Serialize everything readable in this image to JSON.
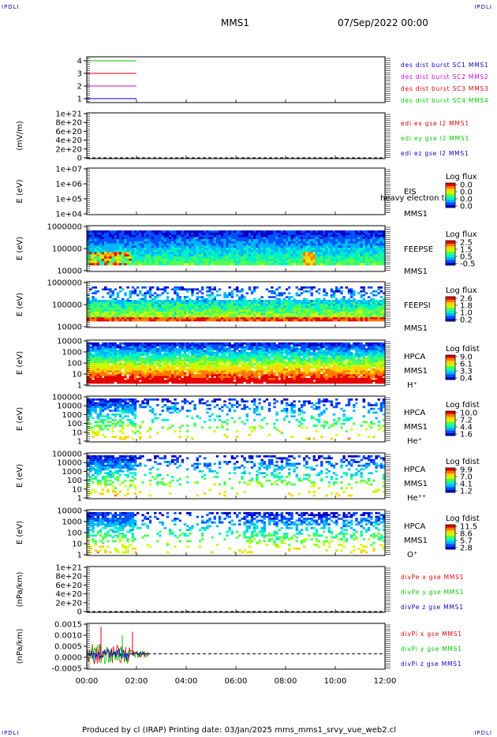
{
  "corner_label": "IPDLI",
  "header": {
    "title": "MMS1",
    "datetime": "07/Sep/2022 00:00"
  },
  "footer": "Produced by cl (IRAP)   Printing date: 03/Jan/2025   mms_mms1_srvy_vue_web2.cl",
  "colors": {
    "blue": "#0000c8",
    "magenta": "#d200d2",
    "red": "#dc0000",
    "green": "#00c800",
    "palette": [
      "#0000c8",
      "#0050ff",
      "#00b4ff",
      "#00f0c8",
      "#50ff50",
      "#c8ff00",
      "#ffd200",
      "#ff7800",
      "#e60000"
    ]
  },
  "chart_data": {
    "x_range": [
      "00:00",
      "12:00"
    ],
    "x_ticks": [
      "00:00",
      "02:00",
      "04:00",
      "06:00",
      "08:00",
      "10:00",
      "12:00"
    ],
    "panels": [
      {
        "id": "des-dist-burst",
        "type": "line",
        "ylabel": "",
        "yticks": [
          "4",
          "3",
          "2",
          "1"
        ],
        "series": [
          {
            "name": "des dist burst SC1 MMS1",
            "color": "#0000c8",
            "y": 1,
            "x": [
              "00:00",
              "02:00"
            ]
          },
          {
            "name": "des dist burst SC2 MMS2",
            "color": "#d200d2",
            "y": 2,
            "x": [
              "00:00",
              "02:00"
            ]
          },
          {
            "name": "des dist burst SC3 MMS3",
            "color": "#dc0000",
            "y": 3,
            "x": [
              "00:00",
              "02:00"
            ]
          },
          {
            "name": "des dist burst SC4 MMS4",
            "color": "#00c800",
            "y": 4,
            "x": [
              "00:00",
              "02:00"
            ]
          }
        ],
        "legend": [
          "des dist burst SC1 MMS1",
          "des dist burst SC2 MMS2",
          "des dist burst SC3 MMS3",
          "des dist burst SC4 MMS4"
        ],
        "legend_colors": [
          "#0000c8",
          "#d200d2",
          "#dc0000",
          "#00c800"
        ]
      },
      {
        "id": "edi-e",
        "type": "line",
        "ylabel": "(mV/m)",
        "yticks": [
          "1e+21",
          "8e+20",
          "6e+20",
          "4e+20",
          "2e+20",
          "0"
        ],
        "ylim": [
          0,
          1e+21
        ],
        "zero_line": true,
        "legend": [
          "edi ex gse l2 MMS1",
          "edi ey gse l2 MMS1",
          "edi ez gse l2 MMS1"
        ],
        "legend_colors": [
          "#dc0000",
          "#00c800",
          "#0000c8"
        ]
      },
      {
        "id": "eis",
        "type": "heatmap",
        "ylabel": "E (eV)",
        "yticks": [
          "1e+07",
          "1e+06",
          "1e+05",
          "1e+04"
        ],
        "ylim": [
          10000,
          10000000
        ],
        "log_y": true,
        "right_label": [
          "EIS",
          "MMS1"
        ],
        "overlay_text": "heavy electron to",
        "cbar_title": "Log flux",
        "cbar_ticks": [
          "0.0",
          "0.0",
          "0.0",
          "0.0"
        ]
      },
      {
        "id": "feepse",
        "type": "heatmap",
        "ylabel": "E (eV)",
        "yticks": [
          "1000000",
          "100000",
          "10000"
        ],
        "ylim": [
          10000,
          1000000
        ],
        "log_y": true,
        "right_label": [
          "FEEPSE",
          "MMS1"
        ],
        "cbar_title": "Log flux",
        "cbar_ticks": [
          "2.5",
          "1.5",
          "0.5",
          "-0.5"
        ]
      },
      {
        "id": "feepsi",
        "type": "heatmap",
        "ylabel": "E (eV)",
        "yticks": [
          "1000000",
          "100000",
          "10000"
        ],
        "ylim": [
          10000,
          1000000
        ],
        "log_y": true,
        "right_label": [
          "FEEPSI",
          "MMS1"
        ],
        "cbar_title": "Log flux",
        "cbar_ticks": [
          "2.6",
          "1.8",
          "1.0",
          "0.2"
        ]
      },
      {
        "id": "hpca-h",
        "type": "heatmap",
        "ylabel": "E (eV)",
        "yticks": [
          "10000",
          "1000",
          "100",
          "10",
          "1"
        ],
        "ylim": [
          1,
          40000
        ],
        "log_y": true,
        "right_label": [
          "HPCA",
          "MMS1",
          "H⁺"
        ],
        "cbar_title": "Log fdist",
        "cbar_ticks": [
          "9.0",
          "6.1",
          "3.3",
          "0.4"
        ]
      },
      {
        "id": "hpca-he",
        "type": "heatmap",
        "ylabel": "E (eV)",
        "yticks": [
          "100000",
          "10000",
          "1000",
          "100",
          "10",
          "1"
        ],
        "ylim": [
          1,
          100000
        ],
        "log_y": true,
        "right_label": [
          "HPCA",
          "MMS1",
          "He⁺"
        ],
        "cbar_title": "Log fdist",
        "cbar_ticks": [
          "10.0",
          "7.2",
          "4.4",
          "1.6"
        ]
      },
      {
        "id": "hpca-he2",
        "type": "heatmap",
        "ylabel": "E (eV)",
        "yticks": [
          "100000",
          "10000",
          "1000",
          "100",
          "10",
          "1"
        ],
        "ylim": [
          1,
          100000
        ],
        "log_y": true,
        "right_label": [
          "HPCA",
          "MMS1",
          "He⁺⁺"
        ],
        "cbar_title": "Log fdist",
        "cbar_ticks": [
          "9.9",
          "7.0",
          "4.1",
          "1.2"
        ]
      },
      {
        "id": "hpca-o",
        "type": "heatmap",
        "ylabel": "E (eV)",
        "yticks": [
          "10000",
          "1000",
          "100",
          "10",
          "1"
        ],
        "ylim": [
          1,
          40000
        ],
        "log_y": true,
        "right_label": [
          "HPCA",
          "MMS1",
          "O⁺"
        ],
        "cbar_title": "Log fdist",
        "cbar_ticks": [
          "11.5",
          "8.6",
          "5.7",
          "2.8"
        ]
      },
      {
        "id": "divpe",
        "type": "line",
        "ylabel": "(nPa/km)",
        "yticks": [
          "1e+21",
          "8e+20",
          "6e+20",
          "4e+20",
          "2e+20",
          "0"
        ],
        "ylim": [
          0,
          1e+21
        ],
        "zero_line": true,
        "legend": [
          "divPe x gse MMS1",
          "divPe y gse MMS1",
          "divPe z gse MMS1"
        ],
        "legend_colors": [
          "#dc0000",
          "#00c800",
          "#0000c8"
        ]
      },
      {
        "id": "divpi",
        "type": "line",
        "ylabel": "(nPa/km)",
        "yticks": [
          "0.0015",
          "0.0010",
          "0.0005",
          "0.0000",
          "-0.0005"
        ],
        "ylim": [
          -0.0009,
          0.0018
        ],
        "zero_line": true,
        "legend": [
          "divPi x gse MMS1",
          "divPi y gse MMS1",
          "divPi z gse MMS1"
        ],
        "legend_colors": [
          "#dc0000",
          "#00c800",
          "#0000c8"
        ],
        "data_extent": [
          "00:00",
          "02:30"
        ]
      }
    ]
  }
}
